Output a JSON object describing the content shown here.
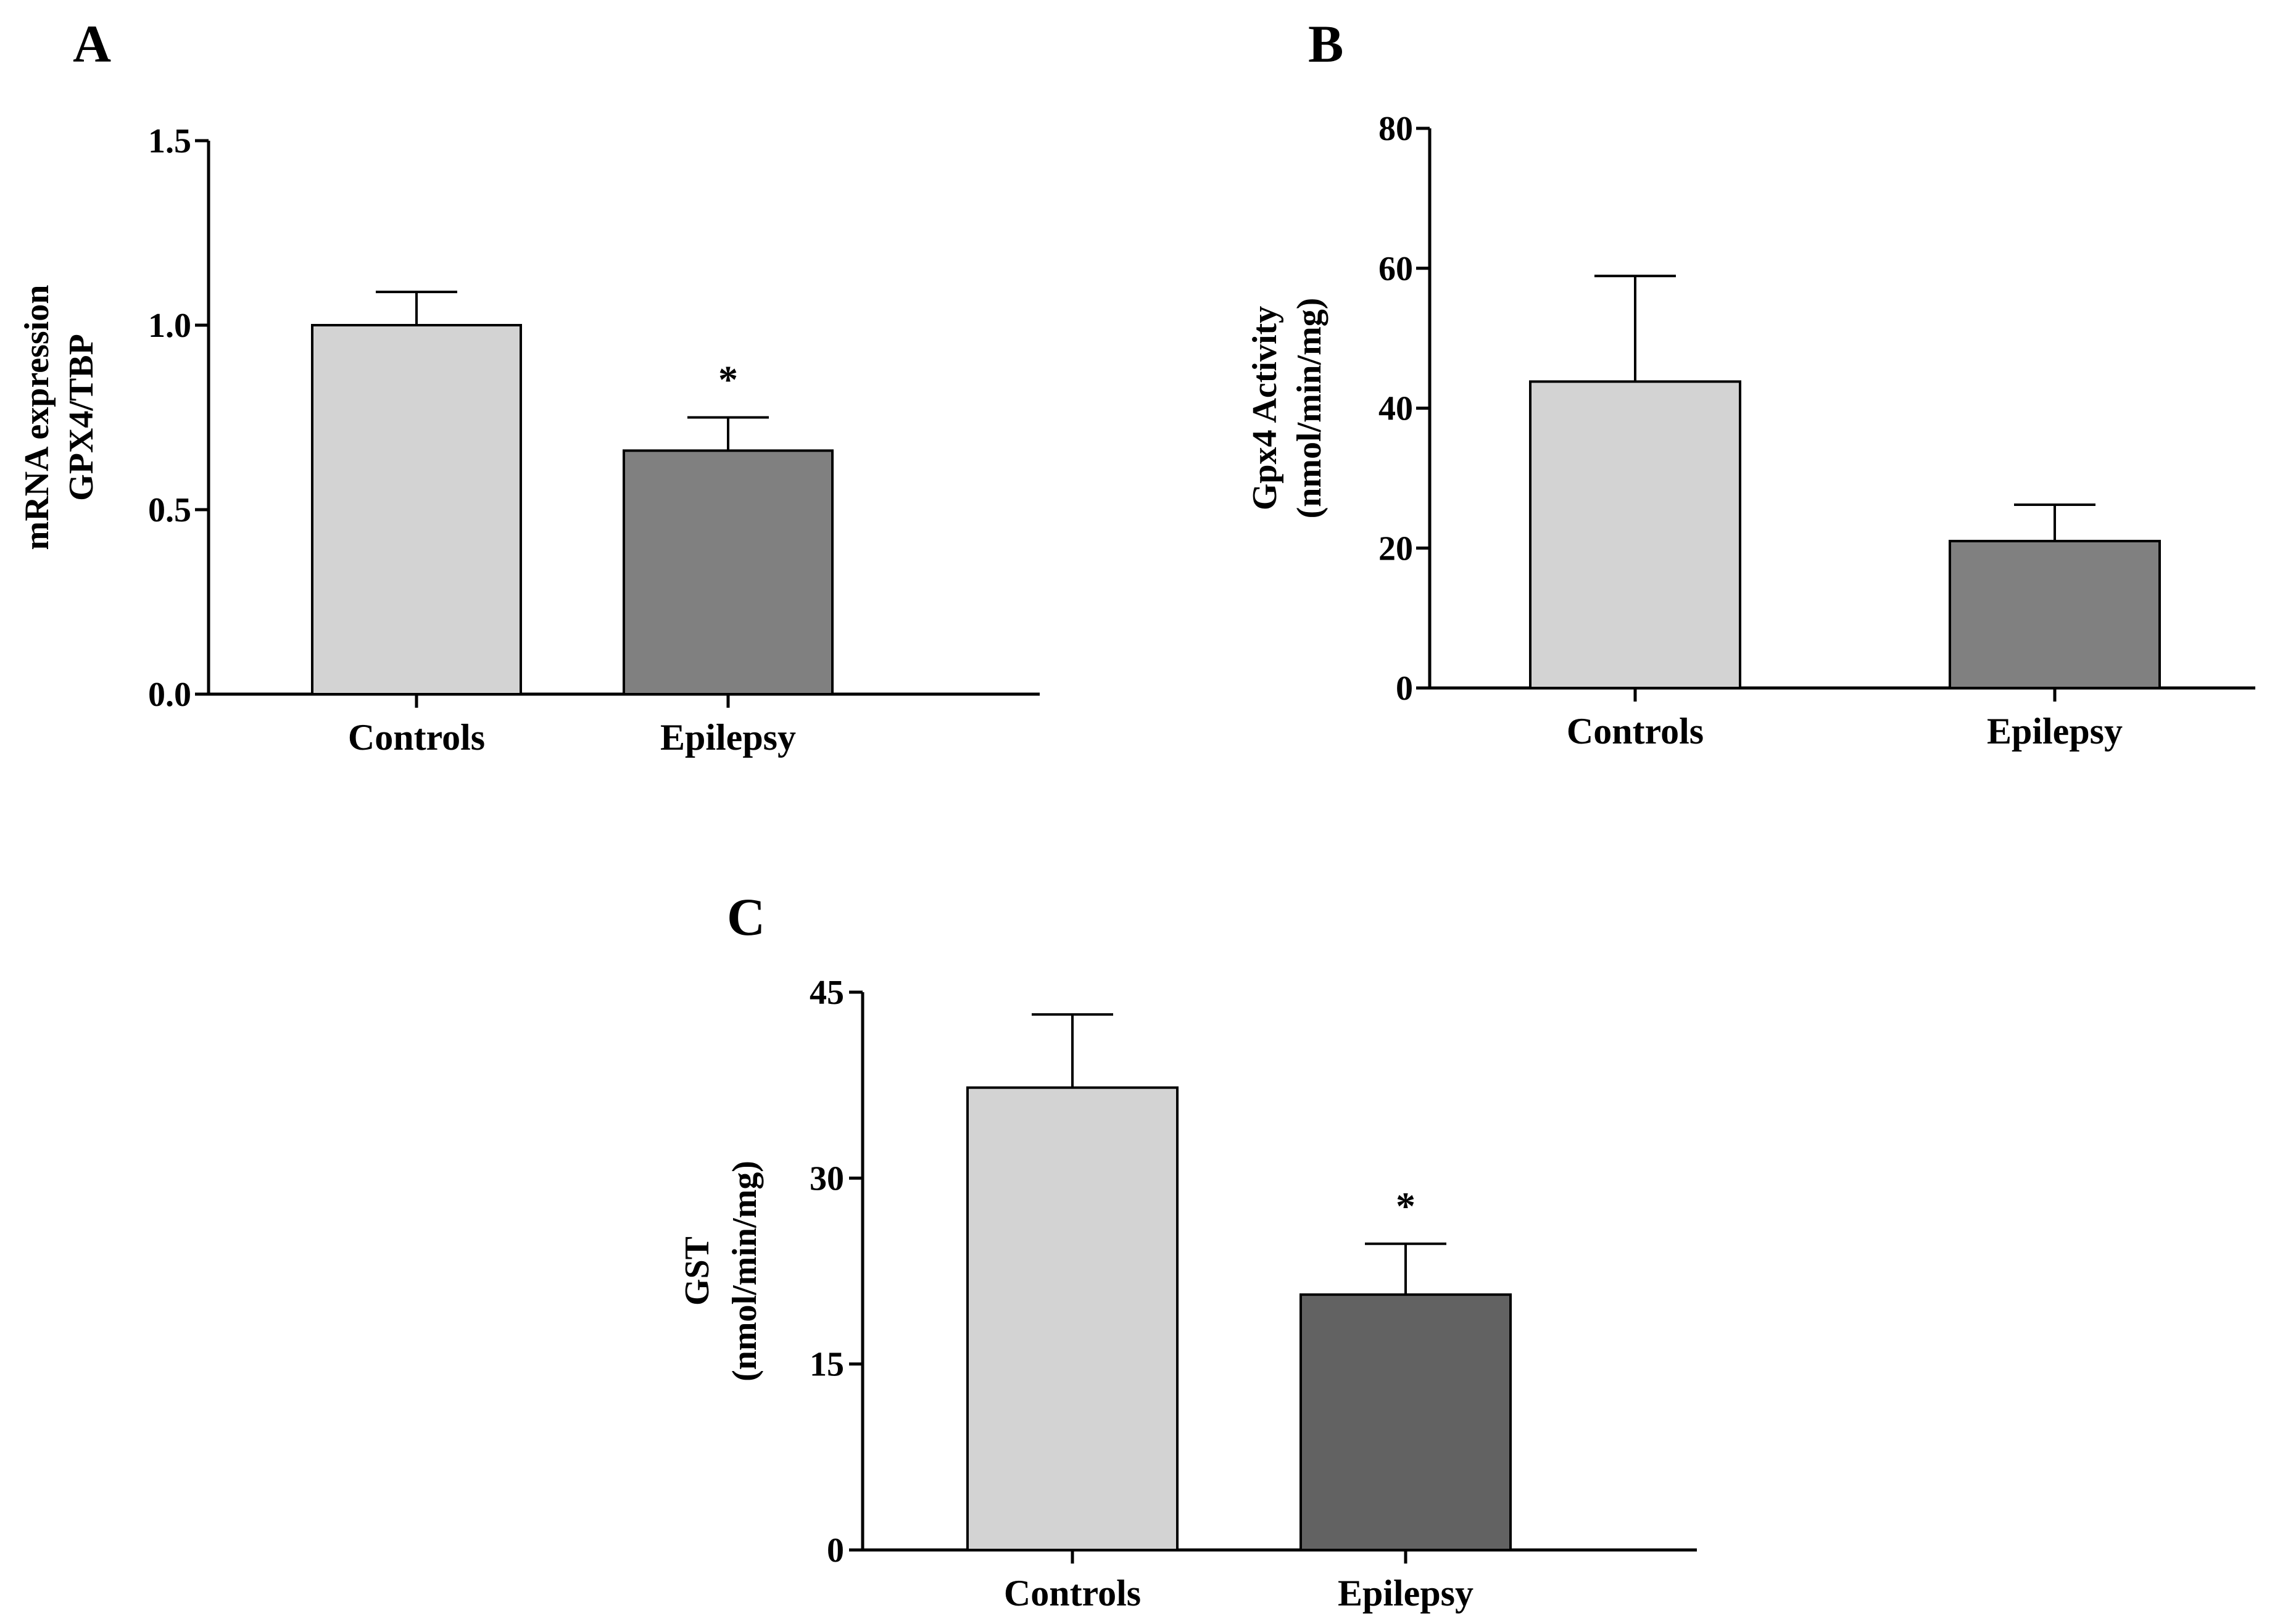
{
  "chart_data": [
    {
      "panel": "A",
      "type": "bar",
      "categories": [
        "Controls",
        "Epilepsy"
      ],
      "values": [
        1.0,
        0.66
      ],
      "errors": [
        0.09,
        0.09
      ],
      "colors": [
        "#d3d3d3",
        "#808080"
      ],
      "significance": [
        "",
        "*"
      ],
      "ylabel_lines": [
        "mRNA expression",
        "GPX4/TBP"
      ],
      "ylim": [
        0,
        1.5
      ],
      "yticks": [
        0.0,
        0.5,
        1.0,
        1.5
      ],
      "ytick_labels": [
        "0.0",
        "0.5",
        "1.0",
        "1.5"
      ]
    },
    {
      "panel": "B",
      "type": "bar",
      "categories": [
        "Controls",
        "Epilepsy"
      ],
      "values": [
        43.8,
        21.0
      ],
      "errors": [
        15.1,
        5.2
      ],
      "colors": [
        "#d3d3d3",
        "#808080"
      ],
      "significance": [
        "",
        ""
      ],
      "ylabel_lines": [
        "Gpx4 Activity",
        "(nmol/min/mg)"
      ],
      "ylim": [
        0,
        80
      ],
      "yticks": [
        0,
        20,
        40,
        60,
        80
      ],
      "ytick_labels": [
        "0",
        "20",
        "40",
        "60",
        "80"
      ]
    },
    {
      "panel": "C",
      "type": "bar",
      "categories": [
        "Controls",
        "Epilepsy"
      ],
      "values": [
        37.3,
        20.6
      ],
      "errors": [
        5.9,
        4.1
      ],
      "colors": [
        "#d3d3d3",
        "#626262"
      ],
      "significance": [
        "",
        "*"
      ],
      "ylabel_lines": [
        "GST",
        "(nmol/min/mg)"
      ],
      "ylim": [
        0,
        45
      ],
      "yticks": [
        0,
        15,
        30,
        45
      ],
      "ytick_labels": [
        "0",
        "15",
        "30",
        "45"
      ]
    }
  ]
}
